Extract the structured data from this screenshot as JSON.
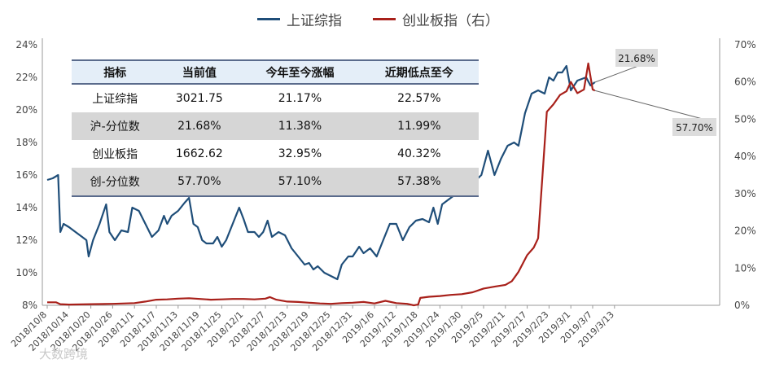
{
  "legend": {
    "series1": "上证综指",
    "series2": "创业板指（右）"
  },
  "table": {
    "headers": [
      "指标",
      "当前值",
      "今年至今涨幅",
      "近期低点至今"
    ],
    "rows": [
      [
        "上证综指",
        "3021.75",
        "21.17%",
        "22.57%"
      ],
      [
        "沪-分位数",
        "21.68%",
        "11.38%",
        "11.99%"
      ],
      [
        "创业板指",
        "1662.62",
        "32.95%",
        "40.32%"
      ],
      [
        "创-分位数",
        "57.70%",
        "57.10%",
        "57.38%"
      ]
    ]
  },
  "callouts": {
    "left": "21.68%",
    "right": "57.70%"
  },
  "watermark": "大数跨境",
  "chart_data": {
    "type": "line",
    "x_ticks": [
      "2018/10/8",
      "2018/10/14",
      "2018/10/20",
      "2018/10/26",
      "2018/11/1",
      "2018/11/7",
      "2018/11/13",
      "2018/11/19",
      "2018/11/25",
      "2018/12/1",
      "2018/12/7",
      "2018/12/13",
      "2018/12/19",
      "2018/12/25",
      "2018/12/31",
      "2019/1/6",
      "2019/1/12",
      "2019/1/18",
      "2019/1/24",
      "2019/1/30",
      "2019/2/5",
      "2019/2/11",
      "2019/2/17",
      "2019/2/23",
      "2019/3/1",
      "2019/3/7",
      "2019/3/13"
    ],
    "y_left": {
      "ticks": [
        "8%",
        "10%",
        "12%",
        "14%",
        "16%",
        "18%",
        "20%",
        "22%",
        "24%"
      ],
      "range": [
        8,
        24
      ]
    },
    "y_right": {
      "ticks": [
        "0%",
        "10%",
        "20%",
        "30%",
        "40%",
        "50%",
        "60%",
        "70%"
      ],
      "range": [
        0,
        70
      ]
    },
    "series": [
      {
        "name": "上证综指",
        "axis": "left",
        "color": "#1f4e79",
        "points": [
          [
            0,
            15.7
          ],
          [
            0.25,
            15.8
          ],
          [
            0.5,
            16.0
          ],
          [
            0.6,
            12.5
          ],
          [
            0.75,
            13.0
          ],
          [
            1.0,
            12.8
          ],
          [
            1.3,
            12.5
          ],
          [
            1.6,
            12.2
          ],
          [
            1.8,
            12.0
          ],
          [
            1.9,
            11.0
          ],
          [
            2.1,
            12.0
          ],
          [
            2.4,
            13.0
          ],
          [
            2.7,
            14.2
          ],
          [
            2.85,
            12.5
          ],
          [
            3.1,
            12.0
          ],
          [
            3.4,
            12.6
          ],
          [
            3.7,
            12.5
          ],
          [
            3.9,
            14.0
          ],
          [
            4.2,
            13.8
          ],
          [
            4.5,
            13.0
          ],
          [
            4.8,
            12.2
          ],
          [
            5.1,
            12.6
          ],
          [
            5.35,
            13.5
          ],
          [
            5.5,
            13.0
          ],
          [
            5.7,
            13.5
          ],
          [
            6.0,
            13.8
          ],
          [
            6.3,
            14.3
          ],
          [
            6.5,
            14.6
          ],
          [
            6.7,
            13.0
          ],
          [
            6.9,
            12.8
          ],
          [
            7.1,
            12.0
          ],
          [
            7.3,
            11.8
          ],
          [
            7.6,
            11.8
          ],
          [
            7.8,
            12.2
          ],
          [
            8.0,
            11.6
          ],
          [
            8.2,
            12.0
          ],
          [
            8.5,
            13.0
          ],
          [
            8.8,
            14.0
          ],
          [
            9.0,
            13.3
          ],
          [
            9.2,
            12.5
          ],
          [
            9.5,
            12.5
          ],
          [
            9.7,
            12.2
          ],
          [
            9.9,
            12.5
          ],
          [
            10.1,
            13.2
          ],
          [
            10.3,
            12.2
          ],
          [
            10.6,
            12.5
          ],
          [
            10.9,
            12.3
          ],
          [
            11.2,
            11.5
          ],
          [
            11.5,
            11.0
          ],
          [
            11.8,
            10.5
          ],
          [
            12.0,
            10.6
          ],
          [
            12.2,
            10.2
          ],
          [
            12.4,
            10.4
          ],
          [
            12.7,
            10.0
          ],
          [
            13.0,
            9.8
          ],
          [
            13.3,
            9.6
          ],
          [
            13.5,
            10.5
          ],
          [
            13.8,
            11.0
          ],
          [
            14.0,
            11.0
          ],
          [
            14.3,
            11.6
          ],
          [
            14.5,
            11.2
          ],
          [
            14.8,
            11.5
          ],
          [
            15.1,
            11.0
          ],
          [
            15.4,
            12.0
          ],
          [
            15.7,
            13.0
          ],
          [
            16.0,
            13.0
          ],
          [
            16.3,
            12.0
          ],
          [
            16.6,
            12.8
          ],
          [
            16.9,
            13.2
          ],
          [
            17.2,
            13.3
          ],
          [
            17.5,
            13.1
          ],
          [
            17.7,
            14.0
          ],
          [
            17.9,
            13.0
          ],
          [
            18.1,
            14.2
          ],
          [
            18.4,
            14.5
          ],
          [
            18.7,
            14.8
          ],
          [
            19.0,
            15.0
          ],
          [
            19.5,
            15.5
          ],
          [
            19.9,
            16.0
          ],
          [
            20.2,
            17.5
          ],
          [
            20.5,
            16.0
          ],
          [
            20.8,
            17.0
          ],
          [
            21.1,
            17.8
          ],
          [
            21.4,
            18.0
          ],
          [
            21.6,
            17.8
          ],
          [
            21.9,
            19.8
          ],
          [
            22.2,
            21.0
          ],
          [
            22.5,
            21.2
          ],
          [
            22.8,
            21.0
          ],
          [
            23.0,
            22.0
          ],
          [
            23.2,
            21.8
          ],
          [
            23.4,
            22.3
          ],
          [
            23.6,
            22.3
          ],
          [
            23.8,
            22.7
          ],
          [
            24.0,
            21.2
          ],
          [
            24.3,
            21.8
          ],
          [
            24.7,
            22.0
          ],
          [
            24.9,
            21.5
          ],
          [
            25.1,
            21.7
          ]
        ]
      },
      {
        "name": "创业板指（右）",
        "axis": "right",
        "color": "#a8201a",
        "points": [
          [
            0,
            0.8
          ],
          [
            0.4,
            0.8
          ],
          [
            0.6,
            0.3
          ],
          [
            1.0,
            0.2
          ],
          [
            2.0,
            0.3
          ],
          [
            3.0,
            0.4
          ],
          [
            4.0,
            0.6
          ],
          [
            4.5,
            1.0
          ],
          [
            5.0,
            1.5
          ],
          [
            5.5,
            1.6
          ],
          [
            6.0,
            1.8
          ],
          [
            6.5,
            1.9
          ],
          [
            7.0,
            1.7
          ],
          [
            7.5,
            1.5
          ],
          [
            8.0,
            1.6
          ],
          [
            8.5,
            1.7
          ],
          [
            9.0,
            1.7
          ],
          [
            9.5,
            1.6
          ],
          [
            10.0,
            1.8
          ],
          [
            10.2,
            2.2
          ],
          [
            10.5,
            1.5
          ],
          [
            11.0,
            1.0
          ],
          [
            11.5,
            0.9
          ],
          [
            12.0,
            0.7
          ],
          [
            12.5,
            0.5
          ],
          [
            13.0,
            0.4
          ],
          [
            13.5,
            0.6
          ],
          [
            14.0,
            0.7
          ],
          [
            14.5,
            0.9
          ],
          [
            15.0,
            0.5
          ],
          [
            15.5,
            1.2
          ],
          [
            16.0,
            0.6
          ],
          [
            16.5,
            0.4
          ],
          [
            16.8,
            0.0
          ],
          [
            17.0,
            0.2
          ],
          [
            17.1,
            2.0
          ],
          [
            17.5,
            2.3
          ],
          [
            18.0,
            2.5
          ],
          [
            18.5,
            2.8
          ],
          [
            19.0,
            3.0
          ],
          [
            19.5,
            3.5
          ],
          [
            20.0,
            4.5
          ],
          [
            20.5,
            5.0
          ],
          [
            21.0,
            5.5
          ],
          [
            21.3,
            6.5
          ],
          [
            21.6,
            9.0
          ],
          [
            22.0,
            13.5
          ],
          [
            22.3,
            15.5
          ],
          [
            22.5,
            18.0
          ],
          [
            22.7,
            35.0
          ],
          [
            22.9,
            52.0
          ],
          [
            23.2,
            54.0
          ],
          [
            23.5,
            56.5
          ],
          [
            23.8,
            57.5
          ],
          [
            24.0,
            60.0
          ],
          [
            24.3,
            57.0
          ],
          [
            24.6,
            58.0
          ],
          [
            24.8,
            65.0
          ],
          [
            25.0,
            58.0
          ],
          [
            25.1,
            57.7
          ]
        ]
      }
    ]
  }
}
